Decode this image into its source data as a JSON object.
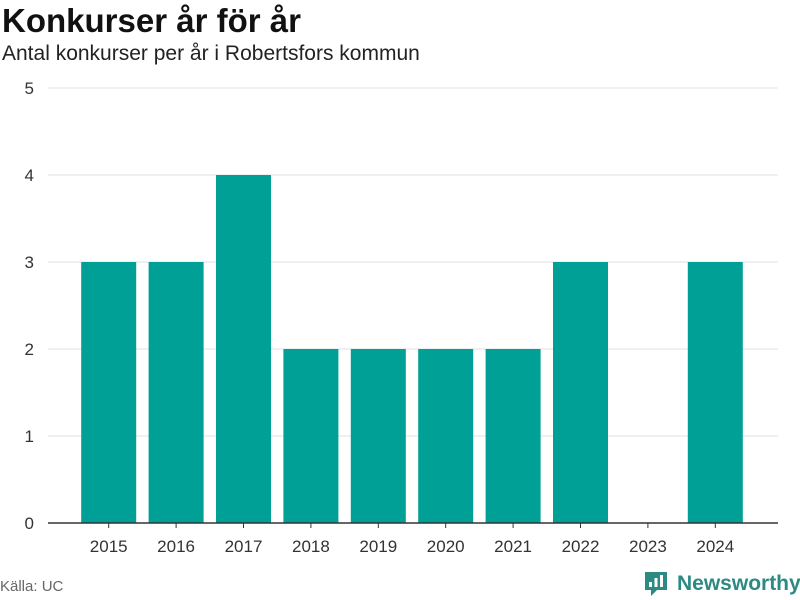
{
  "header": {
    "title": "Konkurser år för år",
    "subtitle": "Antal konkurser per år i Robertsfors kommun"
  },
  "footer": {
    "source": "Källa: UC",
    "brand": "Newsworthy",
    "brand_icon": "newsworthy-logo-icon"
  },
  "colors": {
    "bar": "#00a096",
    "grid": "#e0e0e0",
    "axis": "#333333",
    "brand": "#2c8a82"
  },
  "chart_data": {
    "type": "bar",
    "categories": [
      "2015",
      "2016",
      "2017",
      "2018",
      "2019",
      "2020",
      "2021",
      "2022",
      "2023",
      "2024"
    ],
    "values": [
      3,
      3,
      4,
      2,
      2,
      2,
      2,
      3,
      0,
      3
    ],
    "ylim": [
      0,
      5
    ],
    "yticks": [
      0,
      1,
      2,
      3,
      4,
      5
    ],
    "grid": true
  }
}
